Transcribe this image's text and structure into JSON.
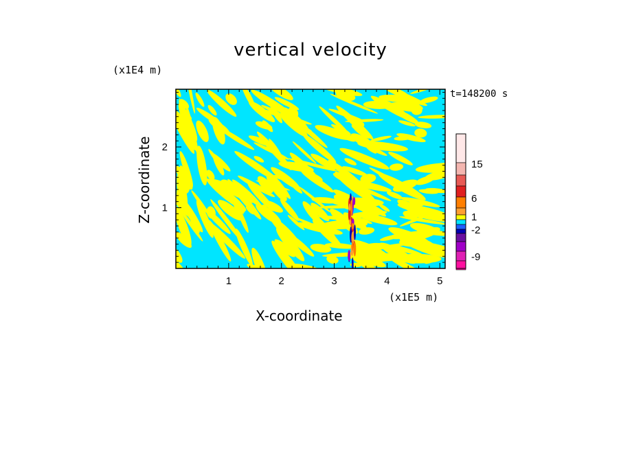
{
  "chart_data": {
    "type": "heatmap",
    "title": "vertical velocity",
    "time_label": "t=148200 s",
    "xlabel": "X-coordinate",
    "ylabel": "Z-coordinate",
    "x_multiplier": "(x1E5 m)",
    "z_multiplier": "(x1E4 m)",
    "xlim": [
      0,
      5.1
    ],
    "ylim": [
      0,
      2.95
    ],
    "x_ticks": [
      1,
      2,
      3,
      4,
      5
    ],
    "z_ticks": [
      1,
      2
    ],
    "background_colors": [
      "#00e5ff",
      "#ffff00"
    ],
    "colorbar": {
      "labels": [
        "15",
        "6",
        "1",
        "-2",
        "-9"
      ],
      "colors": [
        "#ffe8e8",
        "#f4b6b0",
        "#e85a55",
        "#e02020",
        "#ff7f00",
        "#ff9f30",
        "#ffff00",
        "#00e5ff",
        "#1e5fff",
        "#0000b4",
        "#6a0fa0",
        "#a000c8",
        "#e020b4",
        "#ff10a0"
      ]
    }
  }
}
